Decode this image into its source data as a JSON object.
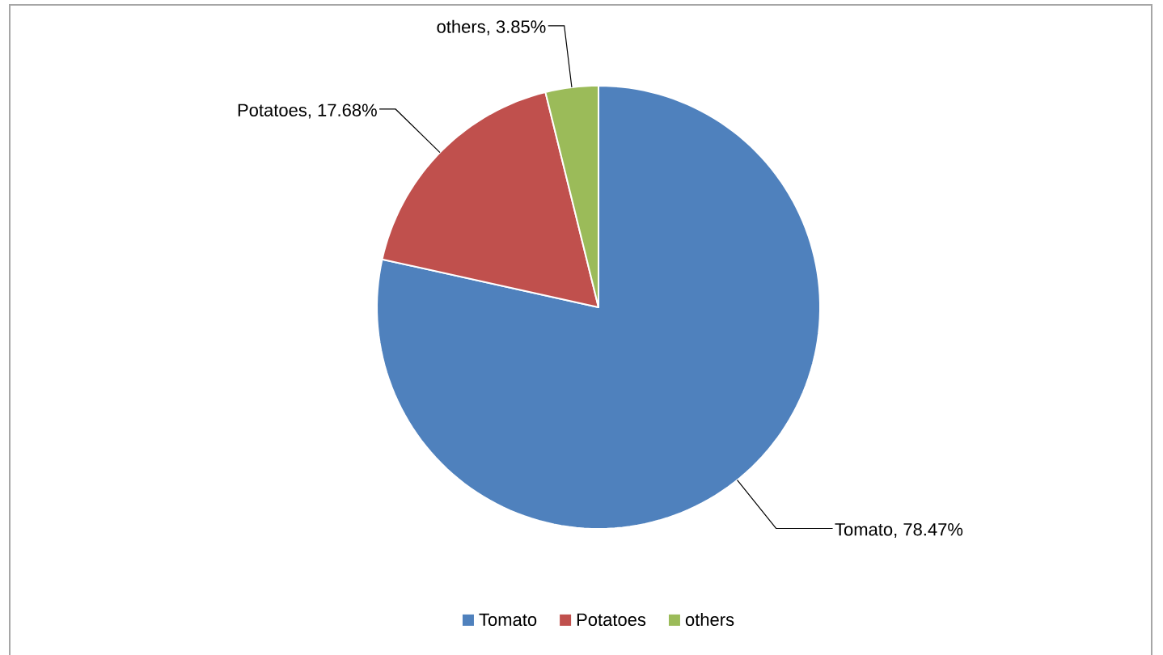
{
  "chart_data": {
    "type": "pie",
    "categories": [
      "Tomato",
      "Potatoes",
      "others"
    ],
    "values": [
      78.47,
      17.68,
      3.85
    ],
    "value_labels": [
      "Tomato, 78.47%",
      "Potatoes, 17.68%",
      "others, 3.85%"
    ],
    "colors": [
      "#4f81bd",
      "#c0504d",
      "#9bbb59"
    ],
    "legend": "bottom"
  }
}
